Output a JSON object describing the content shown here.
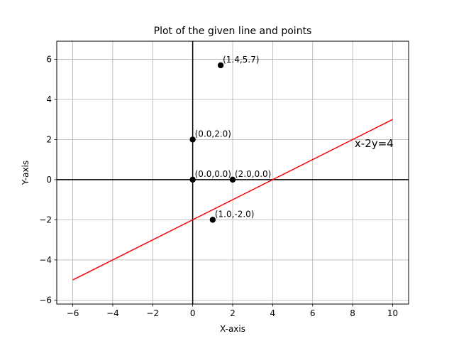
{
  "chart_data": {
    "type": "scatter",
    "title": "Plot of the given line and points",
    "xlabel": "X-axis",
    "ylabel": "Y-axis",
    "xlim": [
      -6.8,
      10.8
    ],
    "ylim": [
      -6.2,
      6.9
    ],
    "xticks": [
      -6,
      -4,
      -2,
      0,
      2,
      4,
      6,
      8,
      10
    ],
    "yticks": [
      -6,
      -4,
      -2,
      0,
      2,
      4,
      6
    ],
    "xtick_labels": [
      "−6",
      "−4",
      "−2",
      "0",
      "2",
      "4",
      "6",
      "8",
      "10"
    ],
    "ytick_labels": [
      "−6",
      "−4",
      "−2",
      "0",
      "2",
      "4",
      "6"
    ],
    "grid": true,
    "line": {
      "label": "x-2y=4",
      "color": "#ff0000",
      "x": [
        -6,
        10
      ],
      "y": [
        -5,
        3
      ]
    },
    "points": [
      {
        "x": 1.4,
        "y": 5.7,
        "label": "(1.4,5.7)"
      },
      {
        "x": 0.0,
        "y": 2.0,
        "label": "(0.0,2.0)"
      },
      {
        "x": 0.0,
        "y": 0.0,
        "label": "(0.0,0.0)"
      },
      {
        "x": 2.0,
        "y": 0.0,
        "label": "(2.0,0.0)"
      },
      {
        "x": 1.0,
        "y": -2.0,
        "label": "(1.0,-2.0)"
      }
    ],
    "point_color": "#000000",
    "line_label_anchor": {
      "x": 8.1,
      "y": 1.8
    }
  }
}
